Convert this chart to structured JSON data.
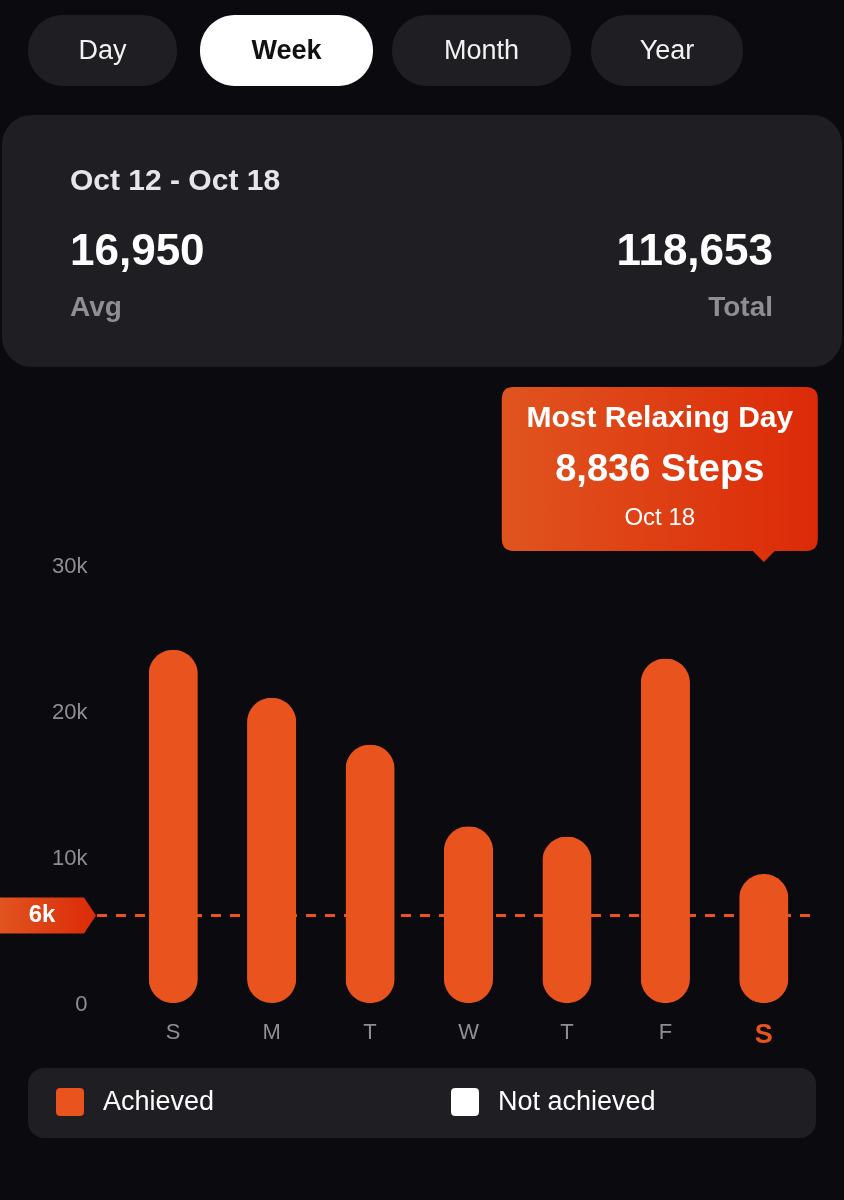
{
  "chart_data": [
    {
      "type": "other",
      "annotations": [
        "Day",
        "Week",
        "Month",
        "Year"
      ]
    },
    {
      "type": "other",
      "title": "Oct 12 - Oct 18",
      "annotations": [
        "16,950",
        "Avg",
        "118,653",
        "Total"
      ]
    },
    {
      "type": "bar",
      "categories": [
        "S",
        "M",
        "T",
        "W",
        "T",
        "F",
        "S"
      ],
      "series": [
        {
          "name": "Achieved",
          "color": "#e9531d",
          "values": [
            24200,
            20900,
            17700,
            12100,
            11400,
            23600,
            8836
          ]
        },
        {
          "name": "Not achieved",
          "color": "#ffffff",
          "values": [
            null,
            null,
            null,
            null,
            null,
            null,
            null
          ]
        }
      ],
      "stacked": true,
      "ylim": [
        0,
        30000
      ],
      "yticks": [
        0,
        {
          "value": 10000,
          "label": "10k"
        },
        {
          "value": 20000,
          "label": "20k"
        },
        {
          "value": 30000,
          "label": "30k"
        }
      ],
      "ref_lines": [
        {
          "axis": "y",
          "value": 6000,
          "label": "6k",
          "color": "#e9531d",
          "line_style": "dashed"
        }
      ],
      "annotations": [
        "Most Relaxing Day",
        "8,836 Steps",
        "Oct 18"
      ],
      "legend": "bottom"
    }
  ]
}
